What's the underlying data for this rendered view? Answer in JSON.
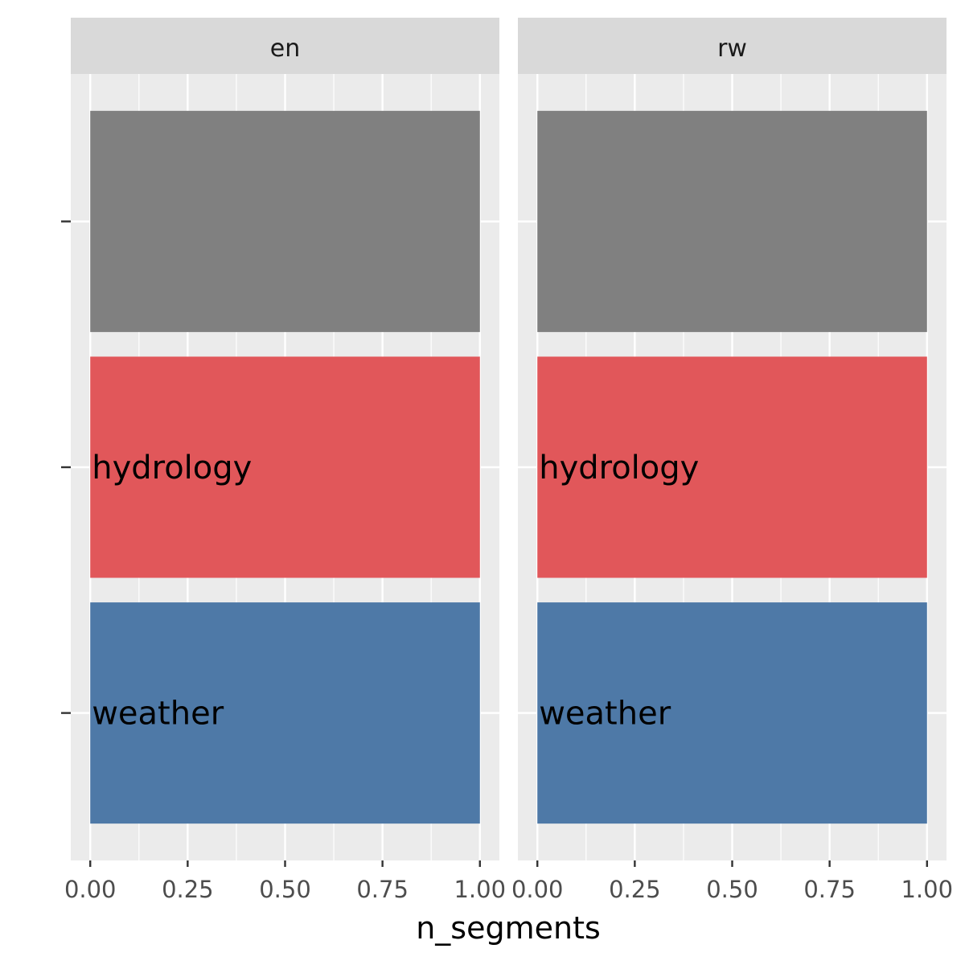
{
  "chart_data": {
    "type": "bar",
    "orientation": "horizontal",
    "xlabel": "n_segments",
    "ylabel": "",
    "xlim": [
      -0.05,
      1.05
    ],
    "x_ticks": [
      0,
      0.25,
      0.5,
      0.75,
      1.0
    ],
    "x_tick_labels": [
      "0.00",
      "0.25",
      "0.50",
      "0.75",
      "1.00"
    ],
    "categories": [
      "",
      "hydrology",
      "weather"
    ],
    "grid": true,
    "legend": "none",
    "facets": [
      {
        "strip": "en",
        "bars": [
          {
            "label": "",
            "value": 1.0,
            "color": "#808080"
          },
          {
            "label": "hydrology",
            "value": 1.0,
            "color": "#E1575A"
          },
          {
            "label": "weather",
            "value": 1.0,
            "color": "#4E79A7"
          }
        ]
      },
      {
        "strip": "rw",
        "bars": [
          {
            "label": "",
            "value": 1.0,
            "color": "#808080"
          },
          {
            "label": "hydrology",
            "value": 1.0,
            "color": "#E1575A"
          },
          {
            "label": "weather",
            "value": 1.0,
            "color": "#4E79A7"
          }
        ]
      }
    ]
  }
}
